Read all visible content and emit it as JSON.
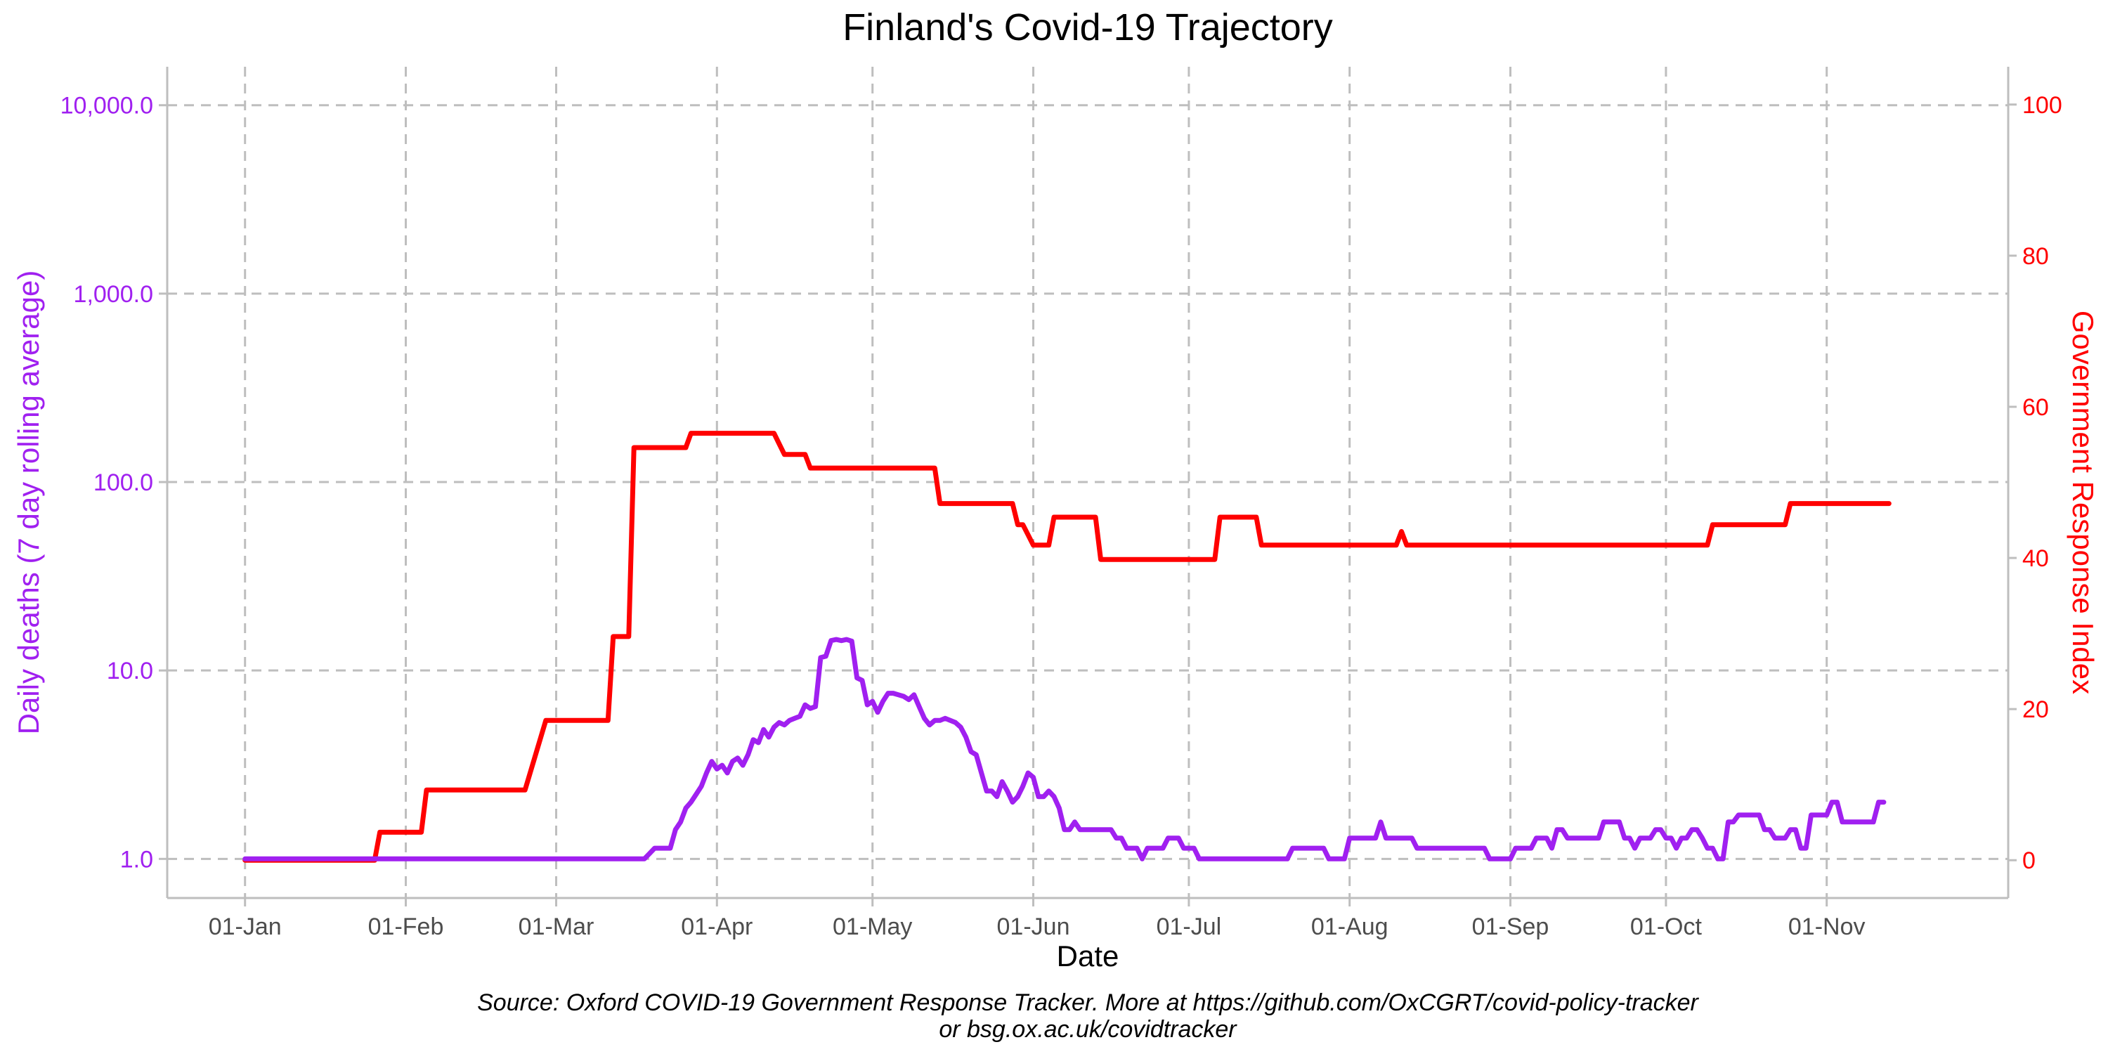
{
  "chart_data": {
    "type": "line",
    "title": "Finland's Covid-19 Trajectory",
    "xlabel": "Date",
    "ylabel_left": "Daily deaths (7 day rolling average)",
    "ylabel_right": "Government Response Index",
    "caption": [
      "Source: Oxford COVID-19 Government Response Tracker. More at https://github.com/OxCGRT/covid-policy-tracker",
      "or bsg.ox.ac.uk/covidtracker"
    ],
    "x_axis": {
      "type": "date",
      "range": [
        "2019-12-17",
        "2020-12-06"
      ],
      "ticks": [
        {
          "date": "2020-01-01",
          "label": "01-Jan"
        },
        {
          "date": "2020-02-01",
          "label": "01-Feb"
        },
        {
          "date": "2020-03-01",
          "label": "01-Mar"
        },
        {
          "date": "2020-04-01",
          "label": "01-Apr"
        },
        {
          "date": "2020-05-01",
          "label": "01-May"
        },
        {
          "date": "2020-06-01",
          "label": "01-Jun"
        },
        {
          "date": "2020-07-01",
          "label": "01-Jul"
        },
        {
          "date": "2020-08-01",
          "label": "01-Aug"
        },
        {
          "date": "2020-09-01",
          "label": "01-Sep"
        },
        {
          "date": "2020-10-01",
          "label": "01-Oct"
        },
        {
          "date": "2020-11-01",
          "label": "01-Nov"
        }
      ]
    },
    "y_left": {
      "scale": "log10",
      "range": [
        0.62,
        16000
      ],
      "ticks": [
        1,
        10,
        100,
        1000,
        10000
      ],
      "tick_labels": [
        "1.0",
        "10.0",
        "100.0",
        "1,000.0",
        "10,000.0"
      ],
      "color": "#a020f0"
    },
    "y_right": {
      "scale": "linear",
      "range": [
        -5,
        105
      ],
      "ticks": [
        0,
        20,
        40,
        60,
        80,
        100
      ],
      "tick_labels": [
        "0",
        "20",
        "40",
        "60",
        "80",
        "100"
      ],
      "color": "#ff0000"
    },
    "grid": true,
    "legend": "none",
    "series": [
      {
        "axis": "right",
        "color": "#ff0000",
        "points": [
          [
            "2020-01-01",
            0
          ],
          [
            "2020-01-26",
            0
          ],
          [
            "2020-01-27",
            3.7
          ],
          [
            "2020-02-04",
            3.7
          ],
          [
            "2020-02-05",
            9.3
          ],
          [
            "2020-02-24",
            9.3
          ],
          [
            "2020-02-28",
            18.5
          ],
          [
            "2020-03-11",
            18.5
          ],
          [
            "2020-03-12",
            29.6
          ],
          [
            "2020-03-15",
            29.6
          ],
          [
            "2020-03-16",
            54.6
          ],
          [
            "2020-03-26",
            54.6
          ],
          [
            "2020-03-27",
            56.5
          ],
          [
            "2020-04-12",
            56.5
          ],
          [
            "2020-04-14",
            53.7
          ],
          [
            "2020-04-18",
            53.7
          ],
          [
            "2020-04-19",
            51.9
          ],
          [
            "2020-05-13",
            51.9
          ],
          [
            "2020-05-14",
            47.2
          ],
          [
            "2020-05-28",
            47.2
          ],
          [
            "2020-05-29",
            44.4
          ],
          [
            "2020-05-30",
            44.4
          ],
          [
            "2020-06-01",
            41.7
          ],
          [
            "2020-06-04",
            41.7
          ],
          [
            "2020-06-05",
            45.4
          ],
          [
            "2020-06-13",
            45.4
          ],
          [
            "2020-06-14",
            39.8
          ],
          [
            "2020-07-06",
            39.8
          ],
          [
            "2020-07-07",
            45.4
          ],
          [
            "2020-07-14",
            45.4
          ],
          [
            "2020-07-15",
            41.7
          ],
          [
            "2020-08-10",
            41.7
          ],
          [
            "2020-08-11",
            43.5
          ],
          [
            "2020-08-12",
            41.7
          ],
          [
            "2020-10-09",
            41.7
          ],
          [
            "2020-10-10",
            44.4
          ],
          [
            "2020-10-24",
            44.4
          ],
          [
            "2020-10-25",
            47.2
          ],
          [
            "2020-11-13",
            47.2
          ]
        ]
      },
      {
        "axis": "left",
        "color": "#a020f0",
        "points": [
          [
            "2020-01-01",
            1.0
          ],
          [
            "2020-03-18",
            1.0
          ],
          [
            "2020-03-20",
            1.14
          ],
          [
            "2020-03-23",
            1.14
          ],
          [
            "2020-03-24",
            1.43
          ],
          [
            "2020-03-25",
            1.57
          ],
          [
            "2020-03-26",
            1.86
          ],
          [
            "2020-03-27",
            2.0
          ],
          [
            "2020-03-29",
            2.43
          ],
          [
            "2020-03-30",
            2.86
          ],
          [
            "2020-03-31",
            3.29
          ],
          [
            "2020-04-01",
            3.0
          ],
          [
            "2020-04-02",
            3.14
          ],
          [
            "2020-04-03",
            2.86
          ],
          [
            "2020-04-04",
            3.29
          ],
          [
            "2020-04-05",
            3.43
          ],
          [
            "2020-04-06",
            3.14
          ],
          [
            "2020-04-07",
            3.57
          ],
          [
            "2020-04-08",
            4.29
          ],
          [
            "2020-04-09",
            4.14
          ],
          [
            "2020-04-10",
            4.86
          ],
          [
            "2020-04-11",
            4.43
          ],
          [
            "2020-04-12",
            5.0
          ],
          [
            "2020-04-13",
            5.29
          ],
          [
            "2020-04-14",
            5.14
          ],
          [
            "2020-04-15",
            5.43
          ],
          [
            "2020-04-16",
            5.57
          ],
          [
            "2020-04-17",
            5.71
          ],
          [
            "2020-04-18",
            6.57
          ],
          [
            "2020-04-19",
            6.29
          ],
          [
            "2020-04-20",
            6.43
          ],
          [
            "2020-04-21",
            11.7
          ],
          [
            "2020-04-22",
            11.9
          ],
          [
            "2020-04-23",
            14.4
          ],
          [
            "2020-04-24",
            14.6
          ],
          [
            "2020-04-25",
            14.4
          ],
          [
            "2020-04-26",
            14.6
          ],
          [
            "2020-04-27",
            14.3
          ],
          [
            "2020-04-28",
            9.14
          ],
          [
            "2020-04-29",
            8.86
          ],
          [
            "2020-04-30",
            6.57
          ],
          [
            "2020-05-01",
            6.86
          ],
          [
            "2020-05-02",
            6.0
          ],
          [
            "2020-05-03",
            6.86
          ],
          [
            "2020-05-04",
            7.57
          ],
          [
            "2020-05-05",
            7.57
          ],
          [
            "2020-05-06",
            7.43
          ],
          [
            "2020-05-07",
            7.29
          ],
          [
            "2020-05-08",
            7.0
          ],
          [
            "2020-05-09",
            7.43
          ],
          [
            "2020-05-10",
            6.43
          ],
          [
            "2020-05-11",
            5.57
          ],
          [
            "2020-05-12",
            5.14
          ],
          [
            "2020-05-13",
            5.43
          ],
          [
            "2020-05-14",
            5.43
          ],
          [
            "2020-05-15",
            5.57
          ],
          [
            "2020-05-16",
            5.43
          ],
          [
            "2020-05-17",
            5.29
          ],
          [
            "2020-05-18",
            5.0
          ],
          [
            "2020-05-19",
            4.43
          ],
          [
            "2020-05-20",
            3.71
          ],
          [
            "2020-05-21",
            3.57
          ],
          [
            "2020-05-22",
            2.86
          ],
          [
            "2020-05-23",
            2.29
          ],
          [
            "2020-05-24",
            2.29
          ],
          [
            "2020-05-25",
            2.14
          ],
          [
            "2020-05-26",
            2.57
          ],
          [
            "2020-05-27",
            2.29
          ],
          [
            "2020-05-28",
            2.0
          ],
          [
            "2020-05-29",
            2.14
          ],
          [
            "2020-05-30",
            2.43
          ],
          [
            "2020-05-31",
            2.86
          ],
          [
            "2020-06-01",
            2.71
          ],
          [
            "2020-06-02",
            2.14
          ],
          [
            "2020-06-03",
            2.14
          ],
          [
            "2020-06-04",
            2.29
          ],
          [
            "2020-06-05",
            2.14
          ],
          [
            "2020-06-06",
            1.86
          ],
          [
            "2020-06-07",
            1.43
          ],
          [
            "2020-06-08",
            1.43
          ],
          [
            "2020-06-09",
            1.57
          ],
          [
            "2020-06-10",
            1.43
          ],
          [
            "2020-06-16",
            1.43
          ],
          [
            "2020-06-17",
            1.29
          ],
          [
            "2020-06-18",
            1.29
          ],
          [
            "2020-06-19",
            1.14
          ],
          [
            "2020-06-21",
            1.14
          ],
          [
            "2020-06-22",
            1.0
          ],
          [
            "2020-06-23",
            1.14
          ],
          [
            "2020-06-26",
            1.14
          ],
          [
            "2020-06-27",
            1.29
          ],
          [
            "2020-06-29",
            1.29
          ],
          [
            "2020-06-30",
            1.14
          ],
          [
            "2020-07-02",
            1.14
          ],
          [
            "2020-07-03",
            1.0
          ],
          [
            "2020-07-20",
            1.0
          ],
          [
            "2020-07-21",
            1.14
          ],
          [
            "2020-07-27",
            1.14
          ],
          [
            "2020-07-28",
            1.0
          ],
          [
            "2020-07-31",
            1.0
          ],
          [
            "2020-08-01",
            1.29
          ],
          [
            "2020-08-06",
            1.29
          ],
          [
            "2020-08-07",
            1.57
          ],
          [
            "2020-08-08",
            1.29
          ],
          [
            "2020-08-13",
            1.29
          ],
          [
            "2020-08-14",
            1.14
          ],
          [
            "2020-08-27",
            1.14
          ],
          [
            "2020-08-28",
            1.0
          ],
          [
            "2020-09-01",
            1.0
          ],
          [
            "2020-09-02",
            1.14
          ],
          [
            "2020-09-05",
            1.14
          ],
          [
            "2020-09-06",
            1.29
          ],
          [
            "2020-09-08",
            1.29
          ],
          [
            "2020-09-09",
            1.14
          ],
          [
            "2020-09-10",
            1.43
          ],
          [
            "2020-09-11",
            1.43
          ],
          [
            "2020-09-12",
            1.29
          ],
          [
            "2020-09-18",
            1.29
          ],
          [
            "2020-09-19",
            1.57
          ],
          [
            "2020-09-22",
            1.57
          ],
          [
            "2020-09-23",
            1.29
          ],
          [
            "2020-09-24",
            1.29
          ],
          [
            "2020-09-25",
            1.14
          ],
          [
            "2020-09-26",
            1.29
          ],
          [
            "2020-09-28",
            1.29
          ],
          [
            "2020-09-29",
            1.43
          ],
          [
            "2020-09-30",
            1.43
          ],
          [
            "2020-10-01",
            1.29
          ],
          [
            "2020-10-02",
            1.29
          ],
          [
            "2020-10-03",
            1.14
          ],
          [
            "2020-10-04",
            1.29
          ],
          [
            "2020-10-05",
            1.29
          ],
          [
            "2020-10-06",
            1.43
          ],
          [
            "2020-10-07",
            1.43
          ],
          [
            "2020-10-08",
            1.29
          ],
          [
            "2020-10-09",
            1.14
          ],
          [
            "2020-10-10",
            1.14
          ],
          [
            "2020-10-11",
            1.0
          ],
          [
            "2020-10-12",
            1.0
          ],
          [
            "2020-10-13",
            1.57
          ],
          [
            "2020-10-14",
            1.57
          ],
          [
            "2020-10-15",
            1.71
          ],
          [
            "2020-10-19",
            1.71
          ],
          [
            "2020-10-20",
            1.43
          ],
          [
            "2020-10-21",
            1.43
          ],
          [
            "2020-10-22",
            1.29
          ],
          [
            "2020-10-24",
            1.29
          ],
          [
            "2020-10-25",
            1.43
          ],
          [
            "2020-10-26",
            1.43
          ],
          [
            "2020-10-27",
            1.14
          ],
          [
            "2020-10-28",
            1.14
          ],
          [
            "2020-10-29",
            1.71
          ],
          [
            "2020-11-01",
            1.71
          ],
          [
            "2020-11-02",
            2.0
          ],
          [
            "2020-11-03",
            2.0
          ],
          [
            "2020-11-04",
            1.57
          ],
          [
            "2020-11-10",
            1.57
          ],
          [
            "2020-11-11",
            2.0
          ],
          [
            "2020-11-12",
            2.0
          ]
        ]
      }
    ]
  }
}
